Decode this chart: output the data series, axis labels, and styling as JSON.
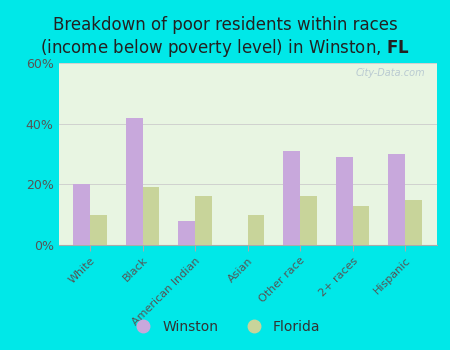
{
  "title_part1": "Breakdown of poor residents within races\n(income below poverty level) in Winston, ",
  "title_bold": "FL",
  "categories": [
    "White",
    "Black",
    "American Indian",
    "Asian",
    "Other race",
    "2+ races",
    "Hispanic"
  ],
  "winston_values": [
    20,
    42,
    8,
    0,
    31,
    29,
    30
  ],
  "florida_values": [
    10,
    19,
    16,
    10,
    16,
    13,
    15
  ],
  "winston_color": "#c8a8dc",
  "florida_color": "#c8d49a",
  "bg_outer": "#00e8e8",
  "bg_plot": "#e8f5e2",
  "ylim": [
    0,
    60
  ],
  "yticks": [
    0,
    20,
    40,
    60
  ],
  "ytick_labels": [
    "0%",
    "20%",
    "40%",
    "60%"
  ],
  "legend_labels": [
    "Winston",
    "Florida"
  ],
  "title_fontsize": 12,
  "watermark": "City-Data.com",
  "bar_width": 0.32
}
